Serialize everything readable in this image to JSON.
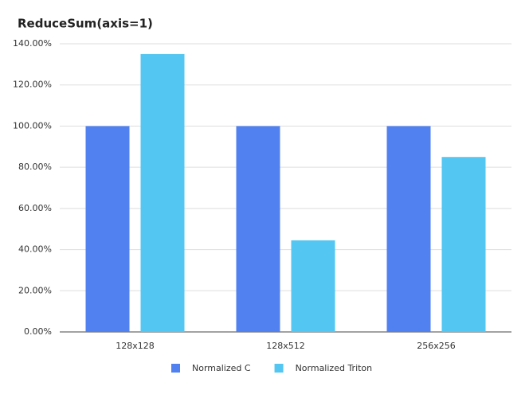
{
  "chart_data": {
    "type": "bar",
    "title": "ReduceSum(axis=1)",
    "categories": [
      "128x128",
      "128x512",
      "256x256"
    ],
    "series": [
      {
        "name": "Normalized C",
        "color": "#5181f0",
        "values": [
          100,
          100,
          100
        ]
      },
      {
        "name": "Normalized Triton",
        "color": "#53c6f1",
        "values": [
          135,
          44.5,
          85
        ]
      }
    ],
    "ylim": [
      0,
      140
    ],
    "yticks": [
      {
        "value": 0,
        "label": "0.00%"
      },
      {
        "value": 20,
        "label": "20.00%"
      },
      {
        "value": 40,
        "label": "40.00%"
      },
      {
        "value": 60,
        "label": "60.00%"
      },
      {
        "value": 80,
        "label": "80.00%"
      },
      {
        "value": 100,
        "label": "100.00%"
      },
      {
        "value": 120,
        "label": "120.00%"
      },
      {
        "value": 140,
        "label": "140.00%"
      }
    ],
    "grid": true,
    "legend": "bottom"
  }
}
